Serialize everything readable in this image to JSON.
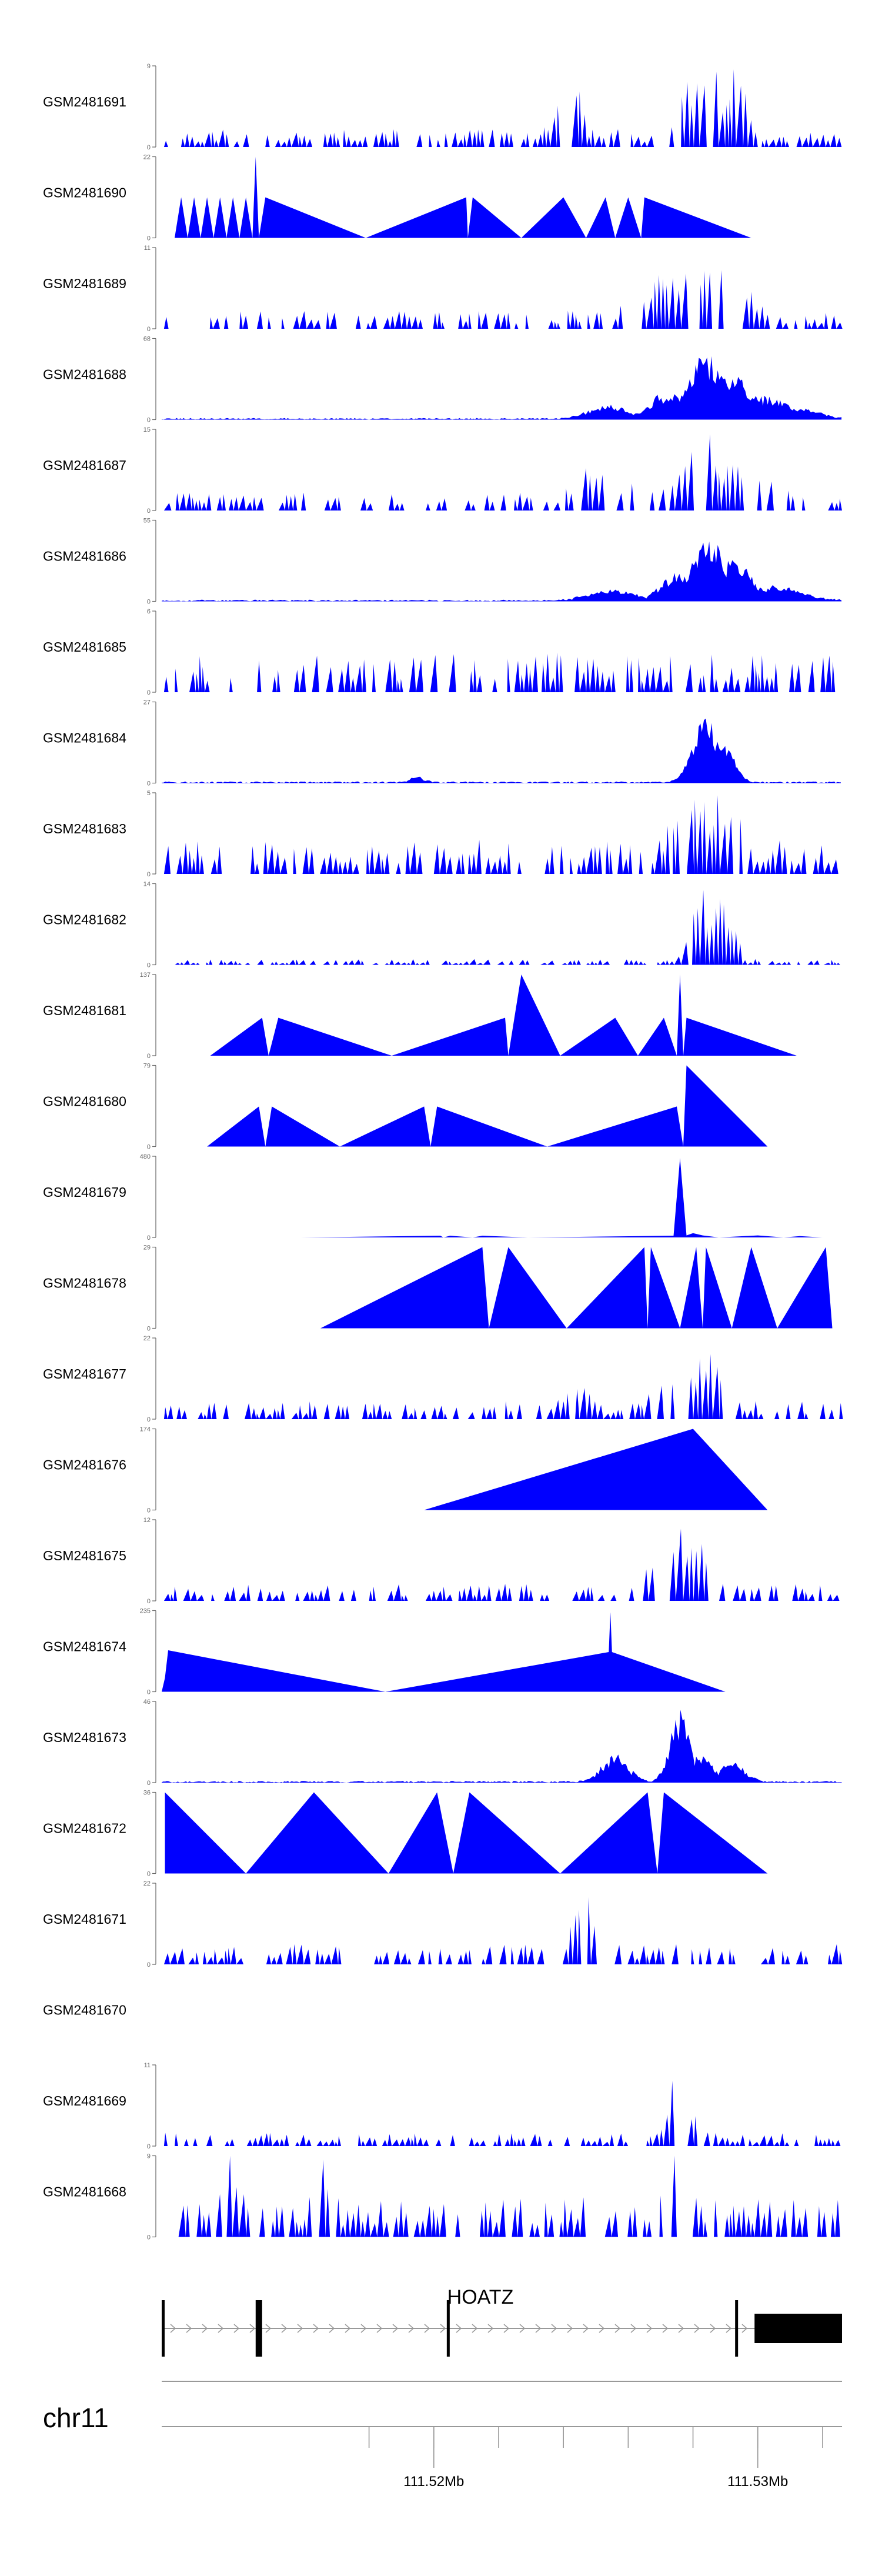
{
  "chart_data": {
    "type": "area",
    "title": "",
    "xlabel": "",
    "ylabel": "",
    "xlim": [
      111.5116,
      111.5326
    ],
    "chromosome": "chr11",
    "gene": {
      "name": "HOATZ",
      "start": 111.5116,
      "end": 111.5326,
      "strand": "+",
      "exons": [
        [
          111.5116,
          111.51165
        ],
        [
          111.5145,
          111.5147
        ],
        [
          111.5204,
          111.52045
        ],
        [
          111.5293,
          111.52935
        ],
        [
          111.5299,
          111.5326
        ]
      ]
    },
    "axis": {
      "minor_ticks": [
        111.518,
        111.52,
        111.522,
        111.524,
        111.526,
        111.528,
        111.53,
        111.532
      ],
      "major_ticks": [
        111.52,
        111.53
      ],
      "tick_labels": [
        "111.52Mb",
        "111.53Mb"
      ]
    },
    "series": [
      {
        "name": "GSM2481691",
        "ymax": 9,
        "ylim": [
          0,
          9
        ],
        "style": "dense",
        "seed": 11,
        "x": [
          111.5116,
          111.5326
        ],
        "peaks": [
          {
            "x": 111.5242,
            "h": 0.8,
            "w": 0.0003
          },
          {
            "x": 111.5282,
            "h": 0.9,
            "w": 0.0004
          },
          {
            "x": 111.5287,
            "h": 1.0,
            "w": 0.0003
          },
          {
            "x": 111.5279,
            "h": 0.75,
            "w": 0.0003
          },
          {
            "x": 111.5293,
            "h": 0.85,
            "w": 0.0003
          }
        ]
      },
      {
        "name": "GSM2481690",
        "ymax": 22,
        "ylim": [
          0,
          22
        ],
        "style": "points",
        "points": [
          [
            111.512,
            0
          ],
          [
            111.5122,
            11
          ],
          [
            111.5124,
            0
          ],
          [
            111.5126,
            11
          ],
          [
            111.5128,
            0
          ],
          [
            111.513,
            11
          ],
          [
            111.5132,
            0
          ],
          [
            111.5134,
            11
          ],
          [
            111.5136,
            0
          ],
          [
            111.5138,
            11
          ],
          [
            111.514,
            0
          ],
          [
            111.5142,
            11
          ],
          [
            111.5144,
            0
          ],
          [
            111.5145,
            22
          ],
          [
            111.5146,
            0
          ],
          [
            111.5148,
            11
          ],
          [
            111.5179,
            0
          ],
          [
            111.521,
            11
          ],
          [
            111.52105,
            0
          ],
          [
            111.5212,
            11
          ],
          [
            111.5227,
            0
          ],
          [
            111.524,
            11
          ],
          [
            111.5247,
            0
          ],
          [
            111.5253,
            11
          ],
          [
            111.5256,
            0
          ],
          [
            111.526,
            11
          ],
          [
            111.5264,
            0
          ],
          [
            111.5265,
            11
          ],
          [
            111.5298,
            0
          ]
        ]
      },
      {
        "name": "GSM2481689",
        "ymax": 11,
        "ylim": [
          0,
          11
        ],
        "style": "dense",
        "seed": 23,
        "x": [
          111.5116,
          111.5326
        ],
        "peaks": [
          {
            "x": 111.5275,
            "h": 0.7,
            "w": 0.0009
          },
          {
            "x": 111.5284,
            "h": 0.95,
            "w": 0.0007
          },
          {
            "x": 111.529,
            "h": 0.8,
            "w": 0.0006
          }
        ]
      },
      {
        "name": "GSM2481688",
        "ymax": 68,
        "ylim": [
          0,
          68
        ],
        "style": "smooth",
        "seed": 37,
        "x": [
          111.5116,
          111.5326
        ],
        "peaks": [
          {
            "x": 111.5254,
            "h": 0.18,
            "w": 0.0006
          },
          {
            "x": 111.5272,
            "h": 0.35,
            "w": 0.0005
          },
          {
            "x": 111.5284,
            "h": 0.85,
            "w": 0.0006
          },
          {
            "x": 111.5292,
            "h": 0.55,
            "w": 0.0007
          },
          {
            "x": 111.5302,
            "h": 0.3,
            "w": 0.0009
          },
          {
            "x": 111.5313,
            "h": 0.15,
            "w": 0.0006
          }
        ]
      },
      {
        "name": "GSM2481687",
        "ymax": 15,
        "ylim": [
          0,
          15
        ],
        "style": "dense",
        "seed": 41,
        "x": [
          111.5116,
          111.5326
        ],
        "peaks": [
          {
            "x": 111.5248,
            "h": 0.55,
            "w": 0.0004
          },
          {
            "x": 111.5283,
            "h": 0.95,
            "w": 0.0005
          },
          {
            "x": 111.5295,
            "h": 0.6,
            "w": 0.0006
          },
          {
            "x": 111.5264,
            "h": 0.45,
            "w": 0.0003
          }
        ]
      },
      {
        "name": "GSM2481686",
        "ymax": 55,
        "ylim": [
          0,
          55
        ],
        "style": "smooth",
        "seed": 53,
        "x": [
          111.5116,
          111.5326
        ],
        "peaks": [
          {
            "x": 111.5255,
            "h": 0.15,
            "w": 0.0007
          },
          {
            "x": 111.5275,
            "h": 0.35,
            "w": 0.0005
          },
          {
            "x": 111.5285,
            "h": 0.85,
            "w": 0.0005
          },
          {
            "x": 111.5293,
            "h": 0.55,
            "w": 0.0005
          },
          {
            "x": 111.5305,
            "h": 0.2,
            "w": 0.0008
          }
        ]
      },
      {
        "name": "GSM2481685",
        "ymax": 6,
        "ylim": [
          0,
          6
        ],
        "style": "dense",
        "seed": 67,
        "x": [
          111.5116,
          111.5326
        ],
        "base": 0.35,
        "peaks": []
      },
      {
        "name": "GSM2481684",
        "ymax": 27,
        "ylim": [
          0,
          27
        ],
        "style": "smooth",
        "seed": 71,
        "x": [
          111.5116,
          111.5326
        ],
        "peaks": [
          {
            "x": 111.5284,
            "h": 0.9,
            "w": 0.0004
          },
          {
            "x": 111.529,
            "h": 0.45,
            "w": 0.0003
          },
          {
            "x": 111.5195,
            "h": 0.08,
            "w": 0.0002
          }
        ]
      },
      {
        "name": "GSM2481683",
        "ymax": 5,
        "ylim": [
          0,
          5
        ],
        "style": "dense",
        "seed": 83,
        "x": [
          111.5116,
          111.5326
        ],
        "base": 0.3,
        "peaks": [
          {
            "x": 111.528,
            "h": 0.8,
            "w": 0.0005
          },
          {
            "x": 111.5291,
            "h": 0.85,
            "w": 0.0004
          }
        ]
      },
      {
        "name": "GSM2481682",
        "ymax": 14,
        "ylim": [
          0,
          14
        ],
        "style": "dense",
        "seed": 97,
        "x": [
          111.5116,
          111.5326
        ],
        "base": 0.05,
        "peaks": [
          {
            "x": 111.5283,
            "h": 0.95,
            "w": 0.0003
          },
          {
            "x": 111.5288,
            "h": 0.8,
            "w": 0.0003
          },
          {
            "x": 111.5292,
            "h": 0.5,
            "w": 0.0002
          }
        ]
      },
      {
        "name": "GSM2481681",
        "ymax": 137,
        "ylim": [
          0,
          137
        ],
        "style": "points",
        "points": [
          [
            111.5131,
            0
          ],
          [
            111.5147,
            64
          ],
          [
            111.5149,
            0
          ],
          [
            111.5152,
            64
          ],
          [
            111.5187,
            0
          ],
          [
            111.5222,
            64
          ],
          [
            111.5223,
            0
          ],
          [
            111.5227,
            137
          ],
          [
            111.5239,
            0
          ],
          [
            111.5256,
            64
          ],
          [
            111.5263,
            0
          ],
          [
            111.5271,
            64
          ],
          [
            111.5275,
            0
          ],
          [
            111.5276,
            137
          ],
          [
            111.5277,
            0
          ],
          [
            111.5278,
            64
          ],
          [
            111.5312,
            0
          ]
        ]
      },
      {
        "name": "GSM2481680",
        "ymax": 79,
        "ylim": [
          0,
          79
        ],
        "style": "points",
        "points": [
          [
            111.513,
            0
          ],
          [
            111.5146,
            39
          ],
          [
            111.5148,
            0
          ],
          [
            111.515,
            39
          ],
          [
            111.5171,
            0
          ],
          [
            111.5197,
            39
          ],
          [
            111.5199,
            0
          ],
          [
            111.5201,
            39
          ],
          [
            111.5235,
            0
          ],
          [
            111.5275,
            39
          ],
          [
            111.5277,
            0
          ],
          [
            111.5278,
            79
          ],
          [
            111.5303,
            0
          ]
        ]
      },
      {
        "name": "GSM2481679",
        "ymax": 480,
        "ylim": [
          0,
          480
        ],
        "style": "points",
        "points": [
          [
            111.5159,
            0
          ],
          [
            111.5202,
            10
          ],
          [
            111.5203,
            0
          ],
          [
            111.5205,
            10
          ],
          [
            111.5212,
            0
          ],
          [
            111.5215,
            10
          ],
          [
            111.5229,
            0
          ],
          [
            111.5274,
            10
          ],
          [
            111.5276,
            470
          ],
          [
            111.5278,
            12
          ],
          [
            111.528,
            25
          ],
          [
            111.5283,
            12
          ],
          [
            111.5288,
            0
          ],
          [
            111.53,
            12
          ],
          [
            111.5308,
            0
          ],
          [
            111.5313,
            8
          ],
          [
            111.532,
            0
          ]
        ]
      },
      {
        "name": "GSM2481678",
        "ymax": 29,
        "ylim": [
          0,
          29
        ],
        "style": "points",
        "points": [
          [
            111.5165,
            0
          ],
          [
            111.5215,
            29
          ],
          [
            111.5217,
            0
          ],
          [
            111.5223,
            29
          ],
          [
            111.5241,
            0
          ],
          [
            111.5265,
            29
          ],
          [
            111.5266,
            0
          ],
          [
            111.5267,
            29
          ],
          [
            111.5276,
            0
          ],
          [
            111.5281,
            29
          ],
          [
            111.5283,
            0
          ],
          [
            111.5284,
            29
          ],
          [
            111.5292,
            0
          ],
          [
            111.5298,
            29
          ],
          [
            111.5306,
            0
          ],
          [
            111.5321,
            29
          ],
          [
            111.5323,
            0
          ]
        ]
      },
      {
        "name": "GSM2481677",
        "ymax": 22,
        "ylim": [
          0,
          22
        ],
        "style": "dense",
        "seed": 131,
        "x": [
          111.5116,
          111.5326
        ],
        "peaks": [
          {
            "x": 111.5244,
            "h": 0.35,
            "w": 0.0003
          },
          {
            "x": 111.5274,
            "h": 0.5,
            "w": 0.0005
          },
          {
            "x": 111.5286,
            "h": 0.95,
            "w": 0.0004
          },
          {
            "x": 111.528,
            "h": 0.65,
            "w": 0.0003
          }
        ]
      },
      {
        "name": "GSM2481676",
        "ymax": 174,
        "ylim": [
          0,
          174
        ],
        "style": "points",
        "points": [
          [
            111.5197,
            0
          ],
          [
            111.528,
            174
          ],
          [
            111.5303,
            0
          ]
        ]
      },
      {
        "name": "GSM2481675",
        "ymax": 12,
        "ylim": [
          0,
          12
        ],
        "style": "dense",
        "seed": 149,
        "x": [
          111.5116,
          111.5326
        ],
        "base": 0.15,
        "peaks": [
          {
            "x": 111.5277,
            "h": 0.95,
            "w": 0.0003
          },
          {
            "x": 111.527,
            "h": 0.7,
            "w": 0.0003
          },
          {
            "x": 111.5283,
            "h": 0.7,
            "w": 0.0003
          }
        ]
      },
      {
        "name": "GSM2481674",
        "ymax": 235,
        "ylim": [
          0,
          235
        ],
        "style": "points",
        "points": [
          [
            111.5116,
            0
          ],
          [
            111.5117,
            40
          ],
          [
            111.5118,
            120
          ],
          [
            111.5185,
            0
          ],
          [
            111.5254,
            115
          ],
          [
            111.52545,
            230
          ],
          [
            111.5255,
            115
          ],
          [
            111.529,
            0
          ]
        ]
      },
      {
        "name": "GSM2481673",
        "ymax": 46,
        "ylim": [
          0,
          46
        ],
        "style": "smooth",
        "seed": 163,
        "x": [
          111.5116,
          111.5326
        ],
        "peaks": [
          {
            "x": 111.5256,
            "h": 0.35,
            "w": 0.0004
          },
          {
            "x": 111.5276,
            "h": 0.9,
            "w": 0.0003
          },
          {
            "x": 111.5282,
            "h": 0.35,
            "w": 0.0004
          },
          {
            "x": 111.5292,
            "h": 0.25,
            "w": 0.0004
          }
        ]
      },
      {
        "name": "GSM2481672",
        "ymax": 36,
        "ylim": [
          0,
          36
        ],
        "style": "points",
        "points": [
          [
            111.5117,
            36
          ],
          [
            111.5142,
            0
          ],
          [
            111.5163,
            36
          ],
          [
            111.5186,
            0
          ],
          [
            111.5201,
            36
          ],
          [
            111.5206,
            0
          ],
          [
            111.5211,
            36
          ],
          [
            111.5239,
            0
          ],
          [
            111.5266,
            36
          ],
          [
            111.5269,
            0
          ],
          [
            111.5271,
            36
          ],
          [
            111.5303,
            0
          ]
        ]
      },
      {
        "name": "GSM2481671",
        "ymax": 22,
        "ylim": [
          0,
          22
        ],
        "style": "dense",
        "seed": 181,
        "x": [
          111.5116,
          111.5326
        ],
        "base": 0.18,
        "peaks": [
          {
            "x": 111.5247,
            "h": 0.95,
            "w": 0.0003
          },
          {
            "x": 111.5251,
            "h": 0.7,
            "w": 0.0003
          }
        ]
      },
      {
        "name": "GSM2481670",
        "ymax": null,
        "style": "empty"
      },
      {
        "name": "GSM2481669",
        "ymax": 11,
        "ylim": [
          0,
          11
        ],
        "style": "dense",
        "seed": 197,
        "x": [
          111.5116,
          111.5326
        ],
        "base": 0.12,
        "peaks": [
          {
            "x": 111.5276,
            "h": 0.95,
            "w": 0.0003
          }
        ]
      },
      {
        "name": "GSM2481668",
        "ymax": 9,
        "ylim": [
          0,
          9
        ],
        "style": "dense",
        "seed": 211,
        "x": [
          111.5116,
          111.5326
        ],
        "base": 0.35,
        "peaks": [
          {
            "x": 111.5137,
            "h": 0.95,
            "w": 0.0002
          },
          {
            "x": 111.5166,
            "h": 0.9,
            "w": 0.0002
          },
          {
            "x": 111.5274,
            "h": 0.9,
            "w": 0.0002
          }
        ]
      }
    ]
  },
  "colors": {
    "fill": "#0000ff",
    "axis": "#666666",
    "text": "#000000",
    "track": "#999999",
    "exon": "#000000"
  }
}
